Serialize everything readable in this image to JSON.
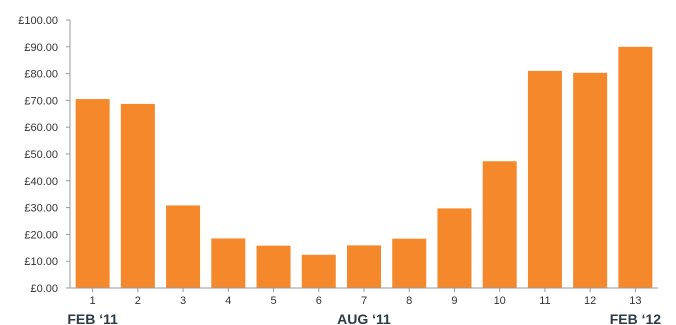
{
  "chart_data": {
    "type": "bar",
    "title": "",
    "xlabel": "",
    "ylabel": "",
    "categories": [
      "1",
      "2",
      "3",
      "4",
      "5",
      "6",
      "7",
      "8",
      "9",
      "10",
      "11",
      "12",
      "13"
    ],
    "values": [
      70.5,
      68.7,
      30.8,
      18.5,
      15.8,
      12.4,
      15.9,
      18.4,
      29.7,
      47.3,
      81.0,
      80.3,
      90.0
    ],
    "ylim": [
      0,
      100
    ],
    "yticks": [
      "£0.00",
      "£10.00",
      "£20.00",
      "£30.00",
      "£40.00",
      "£50.00",
      "£60.00",
      "£70.00",
      "£80.00",
      "£90.00",
      "£100.00"
    ],
    "period_labels": [
      {
        "text": "FEB ‘11",
        "category": "1"
      },
      {
        "text": "AUG ‘11",
        "category": "7"
      },
      {
        "text": "FEB ‘12",
        "category": "13"
      }
    ],
    "grid": false,
    "colors": {
      "bar": "#f5882a",
      "axis": "#9a9a9a"
    }
  }
}
